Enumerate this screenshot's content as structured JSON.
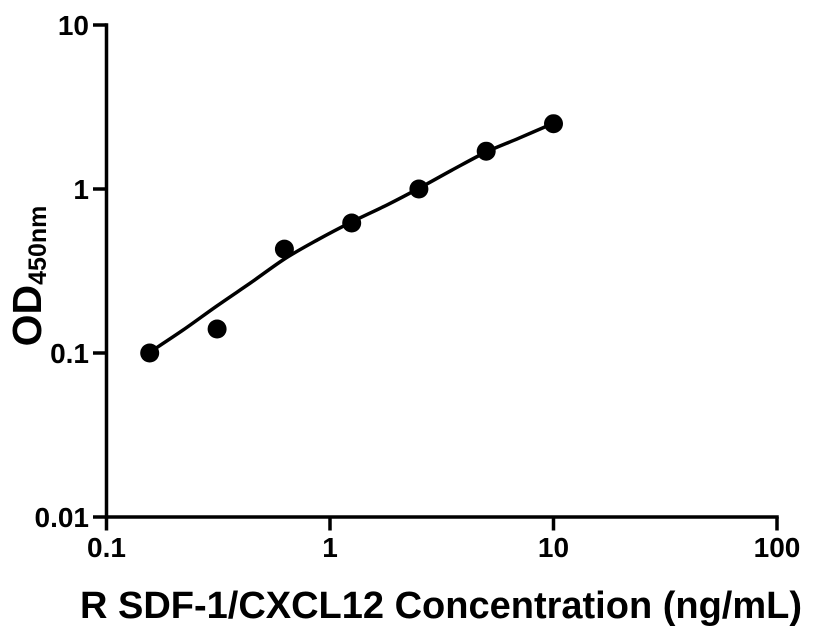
{
  "page": {
    "background_color": "#ffffff",
    "foreground_color": "#000000"
  },
  "chart_data": {
    "type": "scatter",
    "title": "",
    "xlabel": "R SDF-1/CXCL12 Concentration (ng/mL)",
    "ylabel_main": "OD",
    "ylabel_sub": "450nm",
    "x_scale": "log",
    "y_scale": "log",
    "xlim": [
      0.1,
      100
    ],
    "ylim": [
      0.01,
      10
    ],
    "x_tick_values": [
      0.1,
      1,
      10,
      100
    ],
    "x_tick_labels": [
      "0.1",
      "1",
      "10",
      "100"
    ],
    "y_tick_values": [
      0.01,
      0.1,
      1,
      10
    ],
    "y_tick_labels": [
      "0.01",
      "0.1",
      "1",
      "10"
    ],
    "grid": false,
    "legend": false,
    "marker_shape": "filled-circle",
    "marker_color": "#000000",
    "line_color": "#000000",
    "axis_color": "#000000",
    "points": {
      "x": [
        0.156,
        0.3125,
        0.625,
        1.25,
        2.5,
        5,
        10
      ],
      "y": [
        0.1,
        0.14,
        0.43,
        0.62,
        1.0,
        1.7,
        2.5
      ]
    },
    "fit_curve": {
      "x": [
        0.156,
        0.22,
        0.3125,
        0.44,
        0.625,
        0.88,
        1.25,
        1.8,
        2.5,
        3.5,
        5,
        7,
        10
      ],
      "y": [
        0.101,
        0.138,
        0.194,
        0.267,
        0.374,
        0.49,
        0.63,
        0.8,
        1.01,
        1.3,
        1.68,
        2.04,
        2.52
      ]
    }
  }
}
